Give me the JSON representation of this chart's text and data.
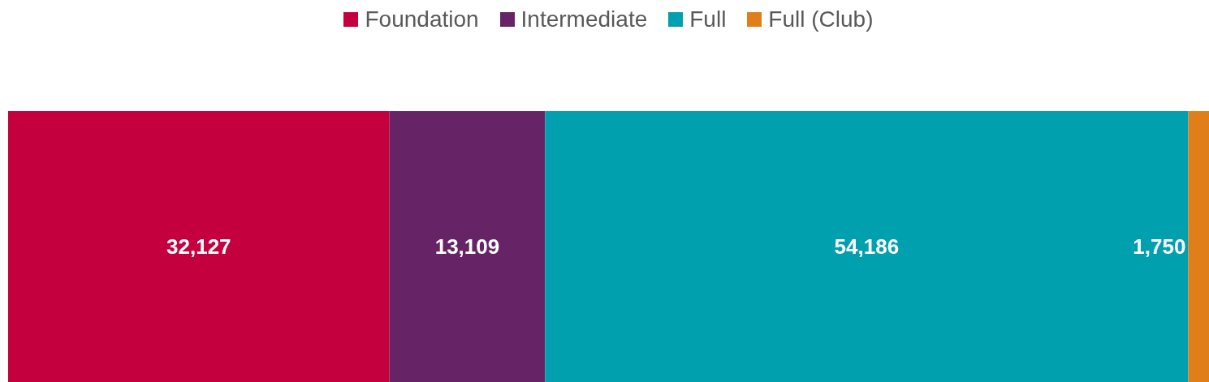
{
  "chart_data": {
    "type": "bar",
    "orientation": "horizontal",
    "stacked": true,
    "legend": "top",
    "categories": [
      null
    ],
    "series": [
      {
        "name": "Foundation",
        "color": "#c5003e",
        "values": [
          32127
        ],
        "value_labels": [
          "32,127"
        ]
      },
      {
        "name": "Intermediate",
        "color": "#662366",
        "values": [
          13109
        ],
        "value_labels": [
          "13,109"
        ]
      },
      {
        "name": "Full",
        "color": "#00a0ae",
        "values": [
          54186
        ],
        "value_labels": [
          "54,186"
        ]
      },
      {
        "name": "Full (Club)",
        "color": "#e07f1a",
        "values": [
          1750
        ],
        "value_labels": [
          "1,750"
        ]
      }
    ]
  }
}
